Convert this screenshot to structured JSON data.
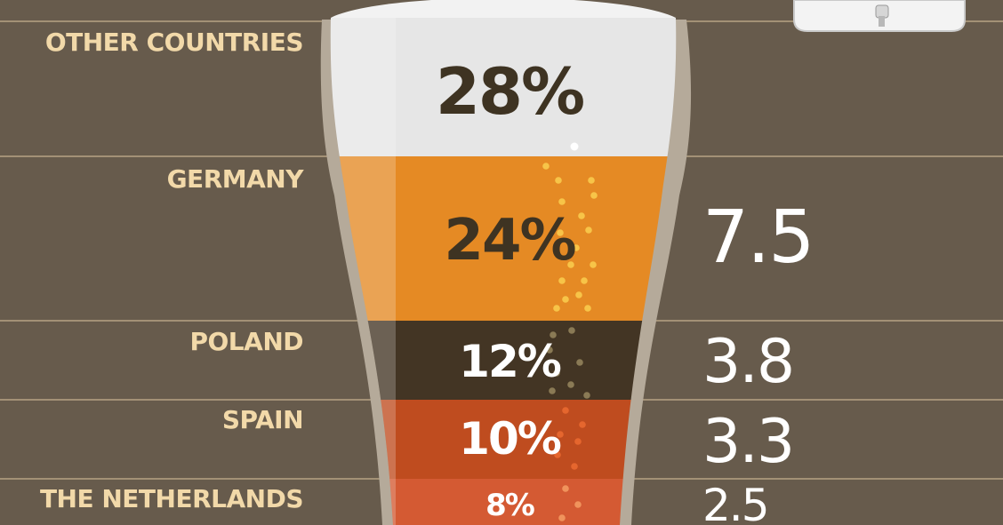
{
  "chart_data": {
    "type": "bar",
    "categories": [
      "OTHER COUNTRIES",
      "GERMANY",
      "POLAND",
      "SPAIN",
      "THE NETHERLANDS"
    ],
    "shares": [
      "28%",
      "24%",
      "12%",
      "10%",
      "8%"
    ],
    "share_values": [
      28,
      24,
      12,
      10,
      8
    ],
    "values_labels": [
      "",
      "7.5",
      "3.8",
      "3.3",
      "2.5"
    ],
    "values": [
      null,
      7.5,
      3.8,
      3.3,
      2.5
    ]
  },
  "colors": {
    "background": "#675b4c",
    "label": "#f2d9a9",
    "divider": "#e0c8a0",
    "layers": [
      "#e6e6e6",
      "#e58a24",
      "#433524",
      "#bf4c1f",
      "#d45a33"
    ],
    "share_text": [
      "#3e3322",
      "#3e3322",
      "#ffffff",
      "#ffffff",
      "#ffffff"
    ]
  },
  "icons": {
    "keg": "keg-icon",
    "bubbles": "bubble-icon"
  }
}
